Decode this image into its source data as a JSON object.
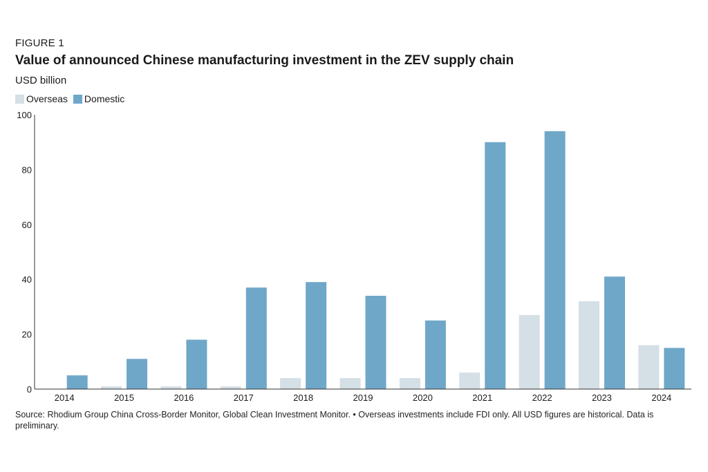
{
  "header": {
    "figure_label": "FIGURE 1",
    "title": "Value of announced Chinese manufacturing investment in the ZEV supply chain",
    "unit": "USD billion"
  },
  "legend": {
    "overseas_label": "Overseas",
    "domestic_label": "Domestic"
  },
  "colors": {
    "overseas": "#d4dfe6",
    "domestic": "#6fa7c9",
    "axis": "#333333",
    "text": "#1a1a1a"
  },
  "chart_data": {
    "type": "bar",
    "title": "Value of announced Chinese manufacturing investment in the ZEV supply chain",
    "xlabel": "",
    "ylabel": "USD billion",
    "ylim": [
      0,
      100
    ],
    "yticks": [
      0,
      20,
      40,
      60,
      80,
      100
    ],
    "grid": false,
    "legend_position": "top-left",
    "categories": [
      "2014",
      "2015",
      "2016",
      "2017",
      "2018",
      "2019",
      "2020",
      "2021",
      "2022",
      "2023",
      "2024"
    ],
    "series": [
      {
        "name": "Overseas",
        "values": [
          0,
          1,
          1,
          1,
          4,
          4,
          4,
          6,
          27,
          32,
          16
        ]
      },
      {
        "name": "Domestic",
        "values": [
          5,
          11,
          18,
          37,
          39,
          34,
          25,
          90,
          94,
          41,
          15
        ]
      }
    ]
  },
  "footer": {
    "source": "Source: Rhodium Group China Cross-Border Monitor, Global Clean Investment Monitor. • Overseas investments include FDI only. All USD figures are historical. Data is preliminary."
  }
}
